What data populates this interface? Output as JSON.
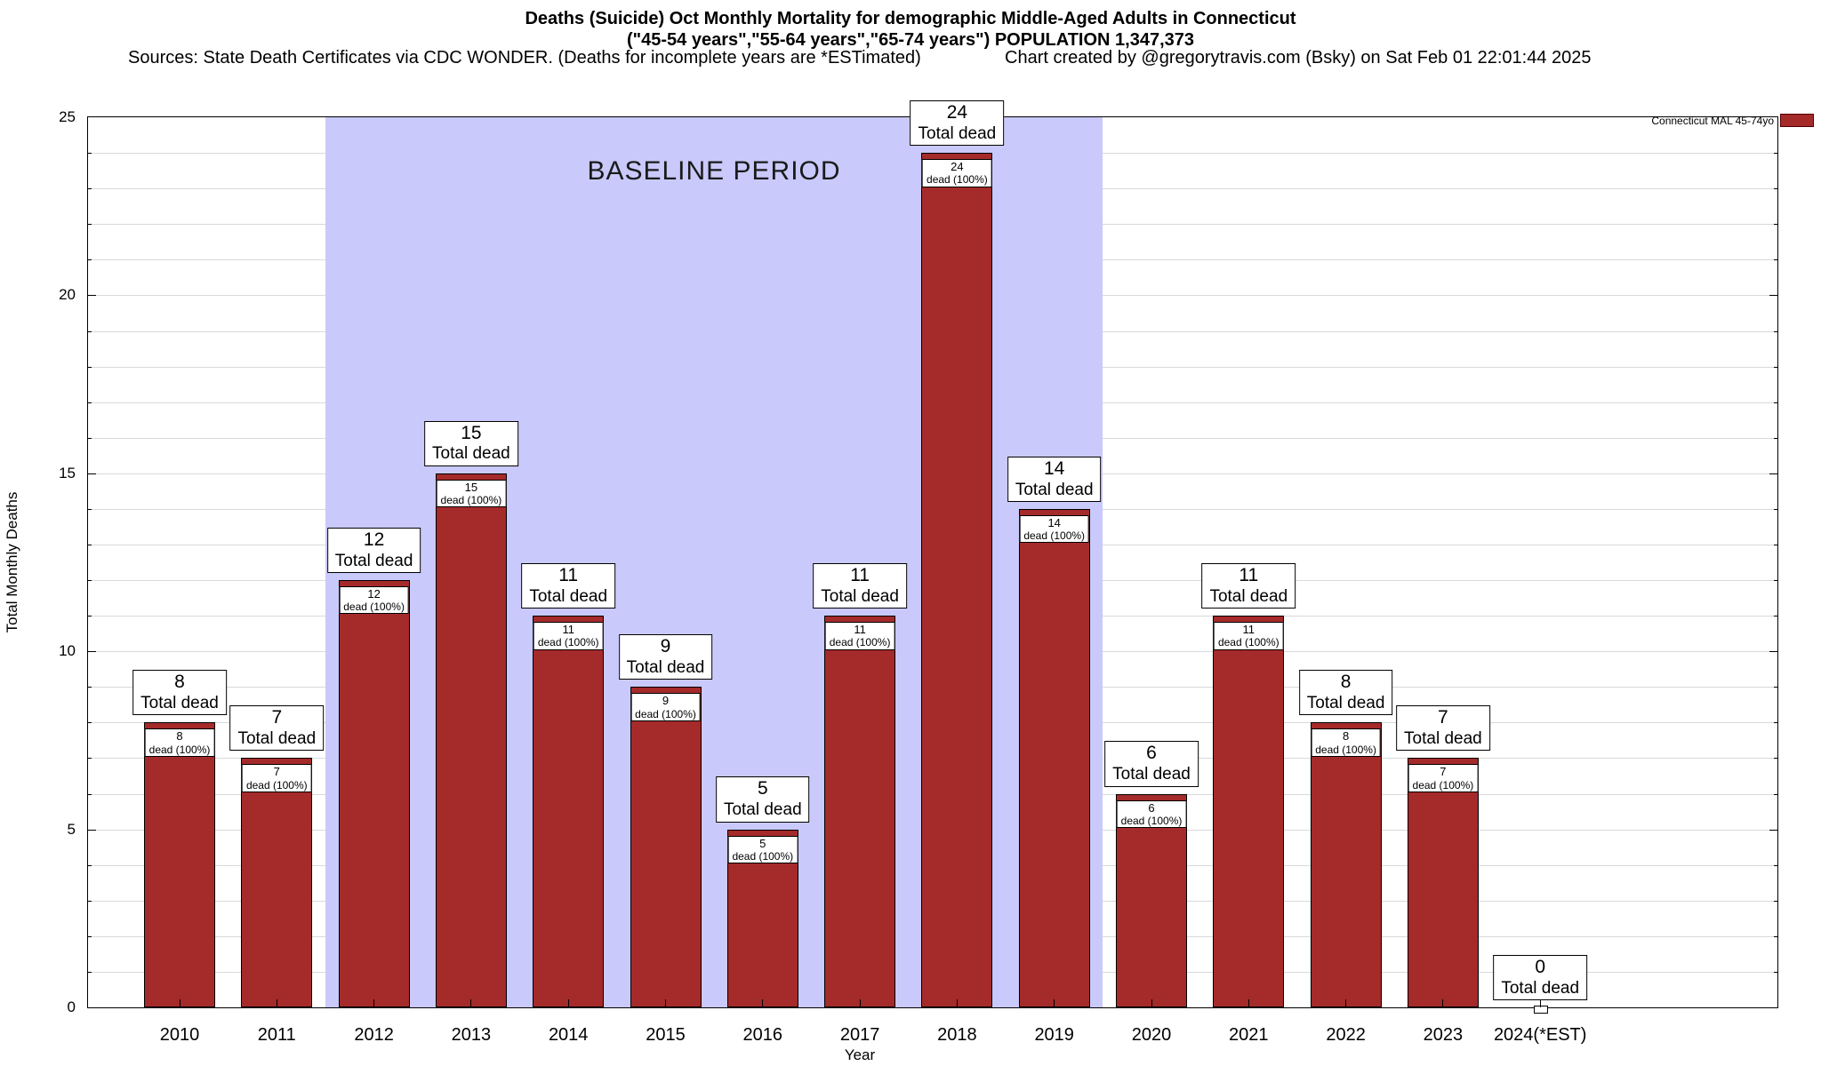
{
  "header": {
    "title": "Deaths (Suicide) Oct Monthly Mortality for demographic Middle-Aged Adults in Connecticut",
    "subtitle": "(\"45-54 years\",\"55-64 years\",\"65-74 years\") POPULATION 1,347,373",
    "sources": "Sources: State Death Certificates via CDC WONDER. (Deaths for incomplete years are *ESTimated)",
    "credit": "Chart created by @gregorytravis.com (Bsky) on Sat Feb 01 22:01:44 2025"
  },
  "chart_data": {
    "type": "bar",
    "title": "Deaths (Suicide) Oct Monthly Mortality for demographic Middle-Aged Adults in Connecticut",
    "subtitle": "(\"45-54 years\",\"55-64 years\",\"65-74 years\") POPULATION 1,347,373",
    "categories": [
      "2010",
      "2011",
      "2012",
      "2013",
      "2014",
      "2015",
      "2016",
      "2017",
      "2018",
      "2019",
      "2020",
      "2021",
      "2022",
      "2023",
      "2024(*EST)"
    ],
    "values": [
      8,
      7,
      12,
      15,
      11,
      9,
      5,
      11,
      24,
      14,
      6,
      11,
      8,
      7,
      0
    ],
    "bar_top_label": "Total dead",
    "bar_inner_label": "dead (100%)",
    "xlabel": "Year",
    "ylabel": "Total Monthly Deaths",
    "ylim": [
      0,
      25
    ],
    "yticks": [
      0,
      5,
      10,
      15,
      20,
      25
    ],
    "grid": "horizontal gridlines every 1 unit",
    "legend_position": "top-right",
    "legend": {
      "label": "Connecticut MAL 45-74yo",
      "color": "#a52a2a"
    },
    "baseline_band": {
      "label": "BASELINE PERIOD",
      "start_category": "2012",
      "end_category": "2019",
      "from_index": 2,
      "to_index": 9,
      "color": "#c9c9fb"
    },
    "bar_color": "#a52a2a"
  }
}
